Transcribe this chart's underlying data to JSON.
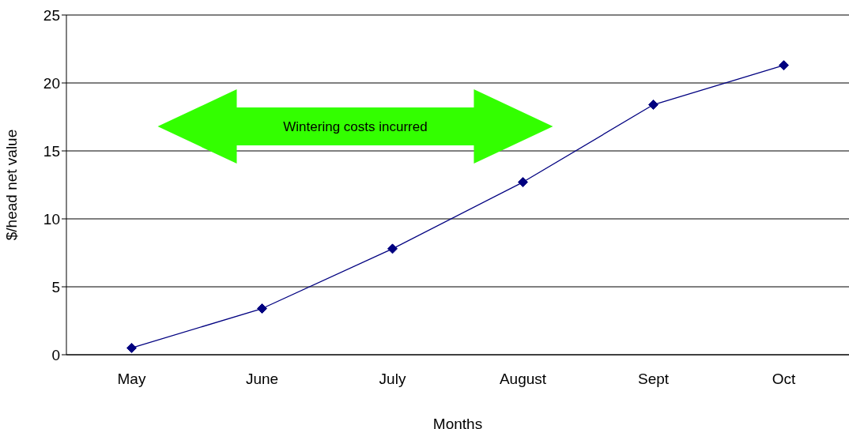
{
  "chart_data": {
    "type": "line",
    "xlabel": "Months",
    "ylabel": "$/head net value",
    "categories": [
      "May",
      "June",
      "July",
      "August",
      "Sept",
      "Oct"
    ],
    "series": [
      {
        "color": "#000080",
        "values": [
          0.5,
          3.4,
          7.8,
          12.7,
          18.4,
          21.3
        ]
      }
    ],
    "ylim": [
      0,
      25
    ],
    "yticks": [
      0,
      5,
      10,
      15,
      20,
      25
    ],
    "grid": "y",
    "marker": "diamond",
    "line_style": "solid",
    "legend": false,
    "annotations": [
      "Wintering costs incurred"
    ]
  }
}
